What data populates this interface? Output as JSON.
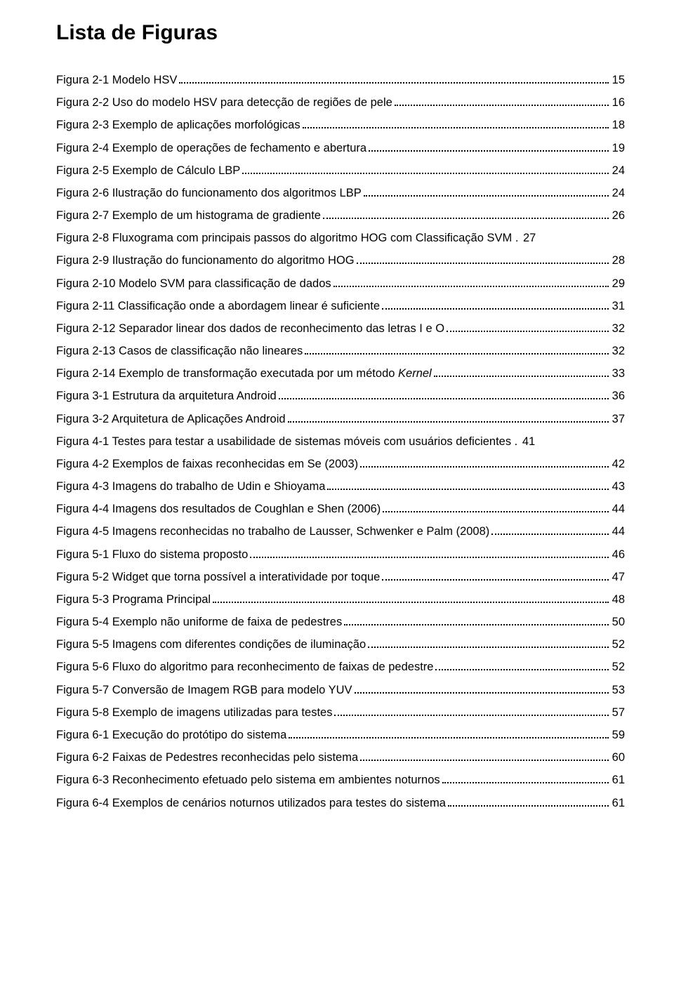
{
  "title": "Lista de Figuras",
  "entries": [
    {
      "label": "Figura 2-1 Modelo HSV",
      "page": "15"
    },
    {
      "label": "Figura 2-2 Uso do modelo HSV para detecção de regiões de pele",
      "page": "16"
    },
    {
      "label": "Figura 2-3 Exemplo de aplicações morfológicas",
      "page": "18"
    },
    {
      "label": "Figura 2-4 Exemplo de operações de fechamento e abertura",
      "page": "19"
    },
    {
      "label": "Figura 2-5 Exemplo de Cálculo LBP",
      "page": "24"
    },
    {
      "label": "Figura 2-6 Ilustração do funcionamento dos algoritmos LBP",
      "page": "24"
    },
    {
      "label": "Figura 2-7 Exemplo de um histograma de gradiente",
      "page": "26"
    },
    {
      "label": "Figura 2-8 Fluxograma com principais passos do algoritmo HOG com Classificação SVM .",
      "page": "27",
      "nodots": true
    },
    {
      "label": "Figura 2-9 Ilustração do funcionamento do algoritmo HOG",
      "page": "28"
    },
    {
      "label": "Figura 2-10 Modelo SVM para classificação de dados",
      "page": "29"
    },
    {
      "label": "Figura 2-11 Classificação onde a abordagem linear é suficiente",
      "page": "31"
    },
    {
      "label": "Figura 2-12 Separador linear dos dados de reconhecimento das letras I e O",
      "page": "32"
    },
    {
      "label": "Figura 2-13 Casos de classificação não lineares",
      "page": "32"
    },
    {
      "label": "Figura 2-14 Exemplo de transformação executada por um método ",
      "italic_tail": "Kernel",
      "page": "33"
    },
    {
      "label": "Figura 3-1 Estrutura da arquitetura Android",
      "page": "36"
    },
    {
      "label": "Figura 3-2 Arquitetura de Aplicações Android",
      "page": "37"
    },
    {
      "label": "Figura 4-1 Testes para testar a usabilidade de sistemas móveis com usuários deficientes .",
      "page": "41",
      "nodots": true
    },
    {
      "label": "Figura 4-2 Exemplos de faixas reconhecidas em Se (2003)",
      "page": "42"
    },
    {
      "label": "Figura 4-3 Imagens do trabalho de Udin e Shioyama",
      "page": "43"
    },
    {
      "label": "Figura 4-4 Imagens dos resultados de Coughlan e Shen (2006)",
      "page": "44"
    },
    {
      "label": "Figura 4-5 Imagens reconhecidas no trabalho de Lausser, Schwenker e Palm (2008)",
      "page": "44"
    },
    {
      "label": "Figura 5-1 Fluxo do sistema proposto",
      "page": "46"
    },
    {
      "label": "Figura 5-2 Widget que torna possível a interatividade por toque",
      "page": "47"
    },
    {
      "label": "Figura 5-3 Programa Principal",
      "page": "48"
    },
    {
      "label": "Figura 5-4 Exemplo não uniforme de faixa de pedestres",
      "page": "50"
    },
    {
      "label": "Figura 5-5 Imagens com diferentes condições de iluminação",
      "page": "52"
    },
    {
      "label": "Figura 5-6 Fluxo do algoritmo para reconhecimento de faixas de pedestre",
      "page": "52"
    },
    {
      "label": "Figura 5-7 Conversão de Imagem RGB para modelo YUV",
      "page": "53"
    },
    {
      "label": "Figura 5-8 Exemplo de imagens utilizadas para testes",
      "page": "57"
    },
    {
      "label": "Figura 6-1 Execução do protótipo do sistema",
      "page": "59"
    },
    {
      "label": "Figura 6-2 Faixas de Pedestres reconhecidas pelo sistema",
      "page": "60"
    },
    {
      "label": "Figura 6-3 Reconhecimento efetuado pelo sistema em ambientes noturnos",
      "page": "61"
    },
    {
      "label": "Figura 6-4 Exemplos de cenários noturnos utilizados para testes do sistema",
      "page": "61"
    }
  ]
}
